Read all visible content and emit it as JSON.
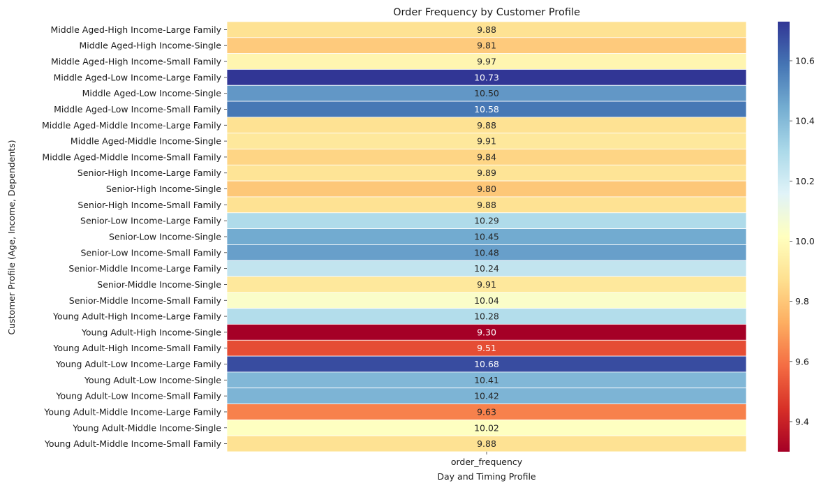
{
  "chart_data": {
    "type": "heatmap",
    "title": "Order Frequency by Customer Profile",
    "xlabel": "Day and Timing Profile",
    "ylabel": "Customer Profile (Age, Income, Dependents)",
    "columns": [
      "order_frequency"
    ],
    "rows": [
      "Middle Aged-High Income-Large Family",
      "Middle Aged-High Income-Single",
      "Middle Aged-High Income-Small Family",
      "Middle Aged-Low Income-Large Family",
      "Middle Aged-Low Income-Single",
      "Middle Aged-Low Income-Small Family",
      "Middle Aged-Middle Income-Large Family",
      "Middle Aged-Middle Income-Single",
      "Middle Aged-Middle Income-Small Family",
      "Senior-High Income-Large Family",
      "Senior-High Income-Single",
      "Senior-High Income-Small Family",
      "Senior-Low Income-Large Family",
      "Senior-Low Income-Single",
      "Senior-Low Income-Small Family",
      "Senior-Middle Income-Large Family",
      "Senior-Middle Income-Single",
      "Senior-Middle Income-Small Family",
      "Young Adult-High Income-Large Family",
      "Young Adult-High Income-Single",
      "Young Adult-High Income-Small Family",
      "Young Adult-Low Income-Large Family",
      "Young Adult-Low Income-Single",
      "Young Adult-Low Income-Small Family",
      "Young Adult-Middle Income-Large Family",
      "Young Adult-Middle Income-Single",
      "Young Adult-Middle Income-Small Family"
    ],
    "values": [
      9.88,
      9.81,
      9.97,
      10.73,
      10.5,
      10.58,
      9.88,
      9.91,
      9.84,
      9.89,
      9.8,
      9.88,
      10.29,
      10.45,
      10.48,
      10.24,
      9.91,
      10.04,
      10.28,
      9.3,
      9.51,
      10.68,
      10.41,
      10.42,
      9.63,
      10.02,
      9.88
    ],
    "value_format": "0.00",
    "colormap": "RdYlBu",
    "vmin": 9.3,
    "vmax": 10.73,
    "colorbar_ticks": [
      9.4,
      9.6,
      9.8,
      10.0,
      10.2,
      10.4,
      10.6
    ],
    "cell_border_color": "#ffffff"
  }
}
